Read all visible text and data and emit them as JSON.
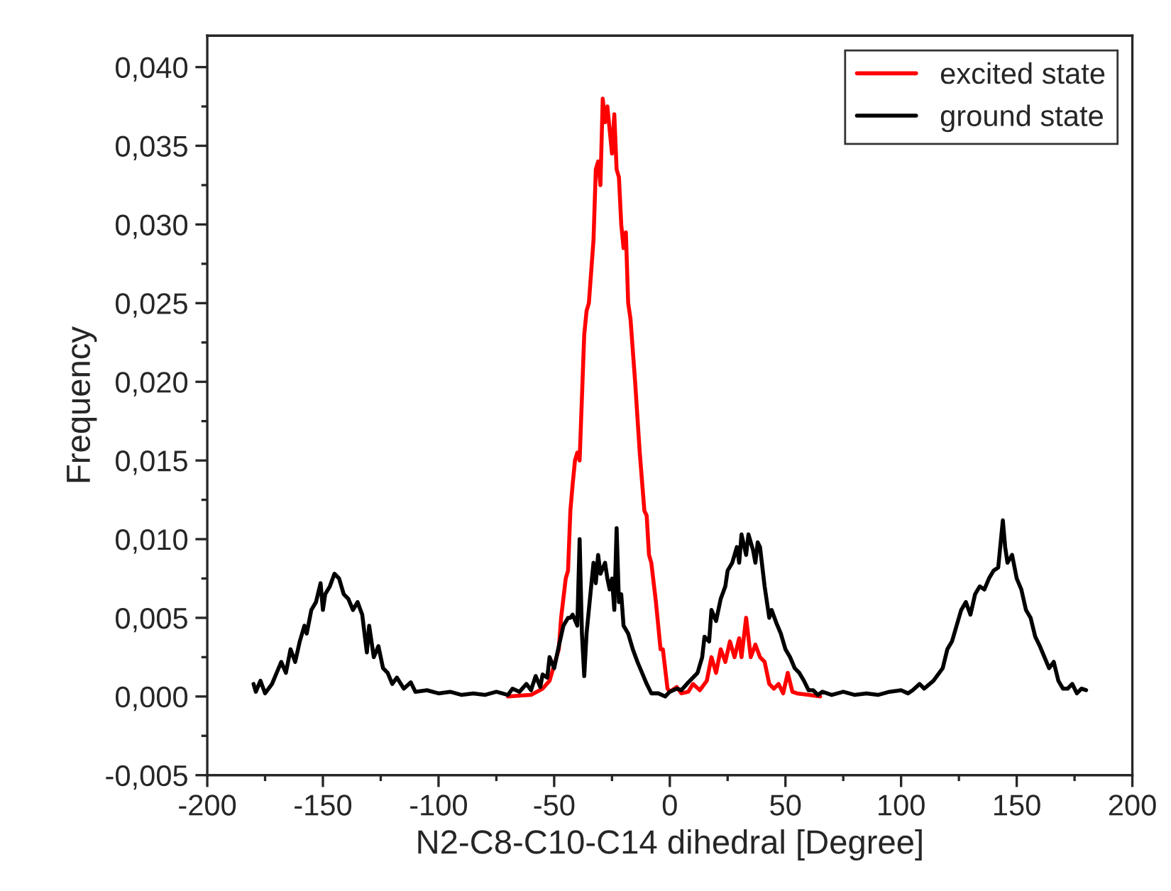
{
  "chart_data": {
    "type": "line",
    "xlabel": "N2-C8-C10-C14 dihedral [Degree]",
    "ylabel": "Frequency",
    "xlim": [
      -200,
      200
    ],
    "xticks": [
      -200,
      -150,
      -100,
      -50,
      0,
      50,
      100,
      150,
      200
    ],
    "ylim": [
      -0.005,
      0.042
    ],
    "yticks": [
      {
        "value": -0.005,
        "label": "-0,005"
      },
      {
        "value": 0.0,
        "label": "0,000"
      },
      {
        "value": 0.005,
        "label": "0,005"
      },
      {
        "value": 0.01,
        "label": "0,010"
      },
      {
        "value": 0.015,
        "label": "0,015"
      },
      {
        "value": 0.02,
        "label": "0,020"
      },
      {
        "value": 0.025,
        "label": "0,025"
      },
      {
        "value": 0.03,
        "label": "0,030"
      },
      {
        "value": 0.035,
        "label": "0,035"
      },
      {
        "value": 0.04,
        "label": "0,040"
      }
    ],
    "grid": false,
    "legend": "top right",
    "marker": "none",
    "line_style": "solid",
    "series": [
      {
        "name": "excited state",
        "color": "#ff0000",
        "x": [
          -70,
          -60,
          -55,
          -52,
          -50,
          -48,
          -47,
          -45,
          -44,
          -43,
          -42,
          -41,
          -40,
          -39,
          -38,
          -37,
          -36,
          -35,
          -34,
          -33,
          -32,
          -31,
          -30,
          -29,
          -28,
          -27,
          -26,
          -25,
          -24,
          -23,
          -22,
          -21,
          -20,
          -19,
          -18,
          -17,
          -15,
          -13,
          -11,
          -10,
          -9,
          -8,
          -6,
          -4,
          -3,
          -1,
          0,
          3,
          5,
          8,
          10,
          13,
          16,
          18,
          20,
          22,
          24,
          26,
          28,
          30,
          31,
          33,
          35,
          37,
          39,
          41,
          43,
          45,
          47,
          49,
          51,
          53,
          55,
          60,
          65
        ],
        "values": [
          0,
          0.0001,
          0.0005,
          0.001,
          0.002,
          0.003,
          0.005,
          0.0075,
          0.008,
          0.0118,
          0.0135,
          0.015,
          0.0155,
          0.015,
          0.019,
          0.023,
          0.0245,
          0.025,
          0.027,
          0.029,
          0.0335,
          0.034,
          0.0325,
          0.038,
          0.0365,
          0.0375,
          0.036,
          0.0345,
          0.037,
          0.0335,
          0.033,
          0.03,
          0.0285,
          0.0295,
          0.025,
          0.024,
          0.02,
          0.0155,
          0.0118,
          0.0115,
          0.009,
          0.0085,
          0.006,
          0.003,
          0.003,
          0.0005,
          0.0003,
          0.0006,
          0.0002,
          0.0003,
          0.0008,
          0.0004,
          0.001,
          0.0025,
          0.0015,
          0.003,
          0.0022,
          0.0035,
          0.0025,
          0.0037,
          0.0025,
          0.005,
          0.0025,
          0.0033,
          0.0025,
          0.0022,
          0.0008,
          0.0005,
          0.0008,
          0.0002,
          0.0015,
          0.0003,
          0.0002,
          0.0001,
          0
        ]
      },
      {
        "name": "ground state",
        "color": "#000000",
        "x": [
          -180,
          -179,
          -177,
          -175,
          -172,
          -170,
          -168,
          -166,
          -164,
          -162,
          -160,
          -158,
          -157,
          -155,
          -153,
          -151,
          -150,
          -149,
          -147,
          -145,
          -143,
          -141,
          -139,
          -137,
          -135,
          -133,
          -131,
          -130,
          -128,
          -126,
          -124,
          -122,
          -120,
          -118,
          -115,
          -112,
          -110,
          -105,
          -100,
          -95,
          -90,
          -85,
          -80,
          -75,
          -70,
          -68,
          -65,
          -62,
          -60,
          -58,
          -56,
          -55,
          -53,
          -52,
          -50,
          -48,
          -46,
          -44,
          -43,
          -42,
          -40,
          -39,
          -38,
          -37,
          -36,
          -34,
          -33,
          -32,
          -31,
          -30,
          -28,
          -27,
          -26,
          -25,
          -24,
          -23,
          -22,
          -21,
          -20,
          -18,
          -16,
          -14,
          -12,
          -10,
          -8,
          -5,
          -2,
          0,
          3,
          5,
          8,
          10,
          12,
          14,
          15,
          17,
          18,
          20,
          22,
          24,
          25,
          27,
          29,
          30,
          31,
          33,
          34,
          36,
          37,
          38,
          39,
          41,
          43,
          44,
          46,
          48,
          50,
          52,
          54,
          56,
          58,
          60,
          62,
          64,
          66,
          70,
          75,
          80,
          85,
          90,
          95,
          100,
          103,
          105,
          108,
          110,
          114,
          118,
          120,
          122,
          124,
          126,
          128,
          130,
          132,
          134,
          136,
          138,
          140,
          142,
          144,
          145,
          146,
          148,
          150,
          152,
          154,
          156,
          158,
          160,
          162,
          164,
          166,
          168,
          170,
          172,
          174,
          176,
          178,
          180
        ],
        "values": [
          0.0008,
          0.0003,
          0.001,
          0.0002,
          0.0008,
          0.0015,
          0.0022,
          0.0015,
          0.003,
          0.0022,
          0.0035,
          0.0045,
          0.004,
          0.0055,
          0.006,
          0.0072,
          0.0055,
          0.0065,
          0.007,
          0.0078,
          0.0075,
          0.0065,
          0.0062,
          0.0055,
          0.006,
          0.0052,
          0.0028,
          0.0045,
          0.0025,
          0.0032,
          0.0018,
          0.0015,
          0.0008,
          0.0012,
          0.0005,
          0.0009,
          0.0003,
          0.0004,
          0.0002,
          0.0003,
          0.0001,
          0.0002,
          0.0001,
          0.0003,
          0.0001,
          0.0005,
          0.0003,
          0.0008,
          0.0004,
          0.0013,
          0.0006,
          0.0014,
          0.0012,
          0.0025,
          0.0018,
          0.0032,
          0.0045,
          0.005,
          0.005,
          0.0052,
          0.0045,
          0.01,
          0.004,
          0.0013,
          0.004,
          0.007,
          0.0085,
          0.0072,
          0.009,
          0.0078,
          0.0085,
          0.0075,
          0.0068,
          0.0075,
          0.0055,
          0.0107,
          0.006,
          0.0065,
          0.0045,
          0.004,
          0.003,
          0.0022,
          0.0015,
          0.0008,
          0.0002,
          0.0002,
          0.0,
          0.0003,
          0.0005,
          0.0004,
          0.0009,
          0.0012,
          0.0015,
          0.0025,
          0.0038,
          0.0035,
          0.0055,
          0.0048,
          0.0062,
          0.007,
          0.008,
          0.0085,
          0.0095,
          0.0085,
          0.0103,
          0.009,
          0.0103,
          0.0093,
          0.0085,
          0.0098,
          0.0095,
          0.007,
          0.005,
          0.0055,
          0.0047,
          0.004,
          0.003,
          0.0025,
          0.0018,
          0.0015,
          0.001,
          0.0004,
          0.0004,
          0.0001,
          0.0003,
          0.0001,
          0.0003,
          0.0001,
          0.0002,
          0.0001,
          0.0003,
          0.0004,
          0.0002,
          0.0004,
          0.0008,
          0.0005,
          0.001,
          0.0018,
          0.003,
          0.0035,
          0.0045,
          0.0055,
          0.006,
          0.0052,
          0.0065,
          0.007,
          0.0068,
          0.0075,
          0.008,
          0.0082,
          0.0112,
          0.0095,
          0.0085,
          0.009,
          0.0075,
          0.0068,
          0.0055,
          0.005,
          0.0038,
          0.0032,
          0.0025,
          0.0018,
          0.0022,
          0.001,
          0.0005,
          0.0005,
          0.0008,
          0.0002,
          0.0005,
          0.0004
        ]
      }
    ]
  }
}
